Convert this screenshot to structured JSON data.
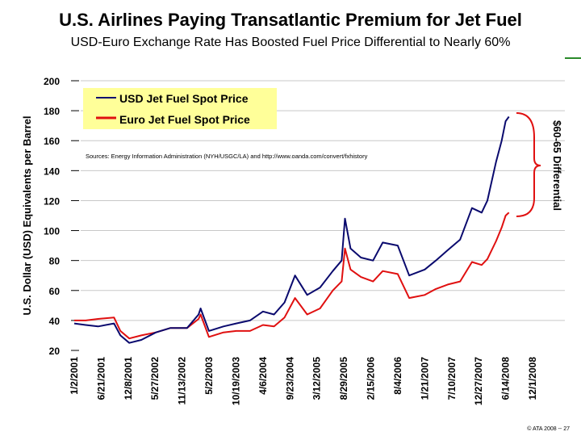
{
  "title": "U.S. Airlines Paying Transatlantic Premium for Jet Fuel",
  "subtitle": "USD-Euro Exchange Rate Has Boosted Fuel Price Differential to Nearly 60%",
  "footer": "© ATA 2008 -- 27",
  "chart_data": {
    "type": "line",
    "ylabel": "U.S. Dollar (USD) Equivalents per Barrel",
    "xlabel": "",
    "ylim": [
      20,
      200
    ],
    "yticks": [
      20,
      40,
      60,
      80,
      100,
      120,
      140,
      160,
      180,
      200
    ],
    "xlim": [
      "2001-01-02",
      "2008-12-01"
    ],
    "xtick_labels": [
      "1/2/2001",
      "6/21/2001",
      "12/8/2001",
      "5/27/2002",
      "11/13/2002",
      "5/2/2003",
      "10/19/2003",
      "4/6/2004",
      "9/23/2004",
      "3/12/2005",
      "8/29/2005",
      "2/15/2006",
      "8/4/2006",
      "1/21/2007",
      "7/10/2007",
      "12/27/2007",
      "6/14/2008",
      "12/1/2008"
    ],
    "xtick_dates": [
      "2001-01-02",
      "2001-06-21",
      "2001-12-08",
      "2002-05-27",
      "2002-11-13",
      "2003-05-02",
      "2003-10-19",
      "2004-04-06",
      "2004-09-23",
      "2005-03-12",
      "2005-08-29",
      "2006-02-15",
      "2006-08-04",
      "2007-01-21",
      "2007-07-10",
      "2007-12-27",
      "2008-06-14",
      "2008-12-01"
    ],
    "grid": true,
    "legend_placement": "top-left",
    "annotation": "Sources: Energy Information Administration (NYH/USGC/LA) and http://www.oanda.com/convert/fxhistory",
    "bracket_label": "$60-65 Differential",
    "series": [
      {
        "name": "USD Jet Fuel Spot Price",
        "color": "#0a0a6e",
        "x": [
          "2001-01-02",
          "2001-03-15",
          "2001-06-01",
          "2001-09-10",
          "2001-10-20",
          "2001-12-15",
          "2002-03-01",
          "2002-06-01",
          "2002-09-01",
          "2002-12-15",
          "2003-02-25",
          "2003-03-10",
          "2003-05-01",
          "2003-08-01",
          "2003-10-20",
          "2004-01-15",
          "2004-04-06",
          "2004-06-15",
          "2004-08-20",
          "2004-10-25",
          "2005-01-10",
          "2005-04-01",
          "2005-06-20",
          "2005-08-15",
          "2005-09-05",
          "2005-10-10",
          "2005-12-15",
          "2006-03-01",
          "2006-05-01",
          "2006-08-04",
          "2006-10-15",
          "2007-01-21",
          "2007-04-01",
          "2007-06-15",
          "2007-09-01",
          "2007-11-15",
          "2008-01-15",
          "2008-02-20",
          "2008-04-15",
          "2008-05-20",
          "2008-06-14",
          "2008-07-05"
        ],
        "values": [
          38,
          37,
          36,
          38,
          30,
          25,
          27,
          32,
          35,
          35,
          44,
          48,
          33,
          36,
          38,
          40,
          46,
          44,
          52,
          70,
          57,
          62,
          73,
          80,
          108,
          88,
          82,
          80,
          92,
          90,
          70,
          74,
          80,
          87,
          94,
          115,
          112,
          120,
          146,
          160,
          173,
          176
        ]
      },
      {
        "name": "Euro Jet Fuel Spot Price",
        "color": "#e01010",
        "x": [
          "2001-01-02",
          "2001-03-15",
          "2001-06-01",
          "2001-09-10",
          "2001-10-20",
          "2001-12-15",
          "2002-03-01",
          "2002-06-01",
          "2002-09-01",
          "2002-12-15",
          "2003-02-25",
          "2003-03-10",
          "2003-05-01",
          "2003-08-01",
          "2003-10-20",
          "2004-01-15",
          "2004-04-06",
          "2004-06-15",
          "2004-08-20",
          "2004-10-25",
          "2005-01-10",
          "2005-04-01",
          "2005-06-20",
          "2005-08-15",
          "2005-09-05",
          "2005-10-10",
          "2005-12-15",
          "2006-03-01",
          "2006-05-01",
          "2006-08-04",
          "2006-10-15",
          "2007-01-21",
          "2007-04-01",
          "2007-06-15",
          "2007-09-01",
          "2007-11-15",
          "2008-01-15",
          "2008-02-20",
          "2008-04-15",
          "2008-05-20",
          "2008-06-14",
          "2008-07-05"
        ],
        "values": [
          40,
          40,
          41,
          42,
          33,
          28,
          30,
          32,
          35,
          35,
          41,
          44,
          29,
          32,
          33,
          33,
          37,
          36,
          42,
          55,
          44,
          48,
          60,
          66,
          88,
          74,
          69,
          66,
          73,
          71,
          55,
          57,
          61,
          64,
          66,
          79,
          77,
          81,
          93,
          102,
          110,
          112
        ]
      }
    ]
  }
}
